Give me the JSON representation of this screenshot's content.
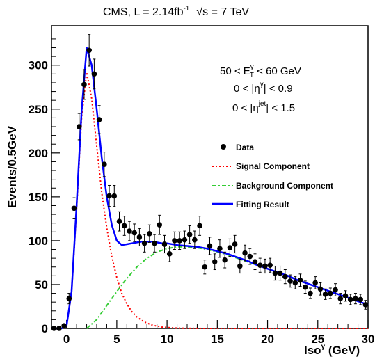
{
  "title": {
    "main": "CMS, L = 2.14fb",
    "main_sup": "-1",
    "energy": "√s = 7 TeV"
  },
  "cuts": [
    {
      "prefix": "50 < E",
      "sup": "γ",
      "sub": "T",
      "suffix": " < 60 GeV"
    },
    {
      "prefix": "0 < |η",
      "sup": "γ",
      "suffix": "| < 0.9"
    },
    {
      "prefix": "0 < |η",
      "sup": "jet",
      "suffix": "| < 1.5"
    }
  ],
  "chart_data": {
    "type": "line",
    "xlabel": "Iso",
    "xlabel_sup": "γ",
    "xlabel_unit": " (GeV)",
    "ylabel": "Events/0.5GeV",
    "xlim": [
      -1.5,
      30
    ],
    "ylim": [
      0,
      345
    ],
    "xticks": [
      0,
      5,
      10,
      15,
      20,
      25,
      30
    ],
    "yticks": [
      0,
      50,
      100,
      150,
      200,
      250,
      300
    ],
    "legend_position": "right",
    "legend": [
      {
        "label": "Data",
        "style": "marker",
        "color": "#000000"
      },
      {
        "label": "Signal Component",
        "style": "dotted",
        "color": "#ff0000"
      },
      {
        "label": "Background Component",
        "style": "dashdot",
        "color": "#33cc33"
      },
      {
        "label": "Fitting Result",
        "style": "solid",
        "color": "#0000ff"
      }
    ],
    "series": [
      {
        "name": "Data",
        "type": "scatter",
        "x": [
          -1.25,
          -0.75,
          -0.25,
          0.25,
          0.75,
          1.25,
          1.75,
          2.25,
          2.75,
          3.25,
          3.75,
          4.25,
          4.75,
          5.25,
          5.75,
          6.25,
          6.75,
          7.25,
          7.75,
          8.25,
          8.75,
          9.25,
          9.75,
          10.25,
          10.75,
          11.25,
          11.75,
          12.25,
          12.75,
          13.25,
          13.75,
          14.25,
          14.75,
          15.25,
          15.75,
          16.25,
          16.75,
          17.25,
          17.75,
          18.25,
          18.75,
          19.25,
          19.75,
          20.25,
          20.75,
          21.25,
          21.75,
          22.25,
          22.75,
          23.25,
          23.75,
          24.25,
          24.75,
          25.25,
          25.75,
          26.25,
          26.75,
          27.25,
          27.75,
          28.25,
          28.75,
          29.25,
          29.75
        ],
        "y": [
          0,
          0,
          3,
          34,
          137,
          230,
          278,
          317,
          290,
          238,
          187,
          151,
          151,
          122,
          117,
          111,
          109,
          104,
          97,
          108,
          97,
          118,
          96,
          85,
          100,
          100,
          101,
          107,
          101,
          117,
          70,
          94,
          76,
          91,
          78,
          92,
          96,
          71,
          86,
          82,
          76,
          72,
          71,
          72,
          63,
          63,
          59,
          54,
          52,
          55,
          47,
          40,
          52,
          45,
          39,
          40,
          44,
          34,
          37,
          33,
          34,
          33,
          27
        ],
        "err": [
          0,
          0,
          2,
          6,
          12,
          15,
          17,
          18,
          17,
          16,
          14,
          12,
          12,
          11,
          11,
          11,
          10,
          10,
          10,
          10,
          10,
          11,
          10,
          9,
          10,
          10,
          10,
          10,
          10,
          11,
          8,
          10,
          9,
          10,
          9,
          10,
          10,
          8,
          9,
          9,
          9,
          8,
          8,
          8,
          8,
          8,
          8,
          7,
          7,
          7,
          7,
          6,
          7,
          7,
          6,
          6,
          7,
          6,
          6,
          6,
          6,
          6,
          5
        ]
      },
      {
        "name": "Signal Component",
        "type": "line",
        "x": [
          -1.5,
          -1,
          -0.5,
          0,
          0.5,
          1,
          1.5,
          2,
          2.5,
          3,
          3.5,
          4,
          4.5,
          5,
          5.5,
          6,
          6.5,
          7,
          7.5,
          8,
          8.5,
          9,
          9.5,
          10,
          11,
          12,
          13,
          14,
          15,
          16,
          17,
          18,
          19,
          20,
          22,
          24,
          26,
          28,
          30
        ],
        "y": [
          0,
          0,
          0,
          3,
          40,
          135,
          240,
          292,
          262,
          208,
          155,
          115,
          82,
          58,
          40,
          28,
          19,
          13,
          9,
          6,
          4,
          2.5,
          1.6,
          1,
          0.4,
          0.15,
          0.05,
          0,
          0,
          0,
          0,
          0,
          0,
          0,
          0,
          0,
          0,
          0,
          0
        ]
      },
      {
        "name": "Background Component",
        "type": "line",
        "x": [
          2,
          3,
          4,
          5,
          6,
          7,
          8,
          9,
          10,
          11,
          12,
          13,
          14,
          15,
          16,
          17,
          18,
          19,
          20,
          21,
          22,
          23,
          24,
          25,
          26,
          27,
          28,
          29,
          30
        ],
        "y": [
          0,
          10,
          26,
          42,
          57,
          70,
          80,
          87,
          91,
          93,
          93,
          92,
          90,
          87,
          84,
          80,
          76,
          72,
          68,
          64,
          60,
          55,
          51,
          47,
          43,
          39,
          35,
          31,
          27
        ]
      },
      {
        "name": "Fitting Result",
        "type": "line",
        "x": [
          -1.5,
          -1,
          -0.5,
          0,
          0.5,
          1,
          1.5,
          2,
          2.5,
          3,
          3.5,
          4,
          4.5,
          5,
          5.5,
          6,
          6.5,
          7,
          7.5,
          8,
          8.5,
          9,
          9.5,
          10,
          11,
          12,
          13,
          14,
          15,
          16,
          17,
          18,
          19,
          20,
          21,
          22,
          23,
          24,
          25,
          26,
          27,
          28,
          29,
          30
        ],
        "y": [
          0,
          0,
          0,
          3,
          42,
          140,
          248,
          320,
          300,
          250,
          195,
          150,
          118,
          100,
          95,
          96,
          97,
          98,
          99,
          99,
          99,
          98,
          97,
          97,
          95,
          94,
          93,
          91,
          88,
          85,
          81,
          77,
          72,
          68,
          64,
          60,
          55,
          51,
          47,
          43,
          39,
          35,
          31,
          27
        ]
      }
    ]
  }
}
